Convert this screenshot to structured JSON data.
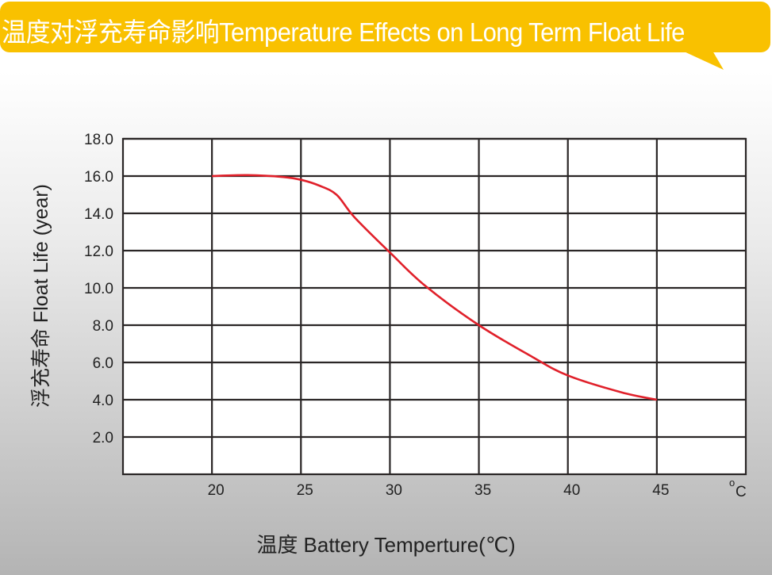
{
  "title": "温度对浮充寿命影响Temperature Effects on Long Term Float Life",
  "chart_data": {
    "type": "line",
    "title": "温度对浮充寿命影响Temperature Effects on Long Term Float Life",
    "xlabel": "温度  Battery  Temperture(℃)",
    "ylabel": "浮充寿命  Float Life (year)",
    "x_unit_label": "°C",
    "xlim": [
      15,
      50
    ],
    "ylim": [
      0,
      18
    ],
    "xticks": [
      "20",
      "25",
      "30",
      "35",
      "40",
      "45"
    ],
    "yticks": [
      "2.0",
      "4.0",
      "6.0",
      "8.0",
      "10.0",
      "12.0",
      "14.0",
      "16.0",
      "18.0"
    ],
    "grid": true,
    "series": [
      {
        "color": "#e0202a",
        "x": [
          20,
          22,
          24,
          25,
          26,
          27,
          28,
          30,
          32,
          35,
          38,
          40,
          43,
          45
        ],
        "y": [
          16.0,
          16.05,
          15.95,
          15.8,
          15.5,
          15.0,
          13.8,
          11.9,
          10.1,
          8.0,
          6.3,
          5.3,
          4.4,
          4.0
        ]
      }
    ]
  },
  "colors": {
    "banner": "#f9c100",
    "line": "#e0202a"
  }
}
